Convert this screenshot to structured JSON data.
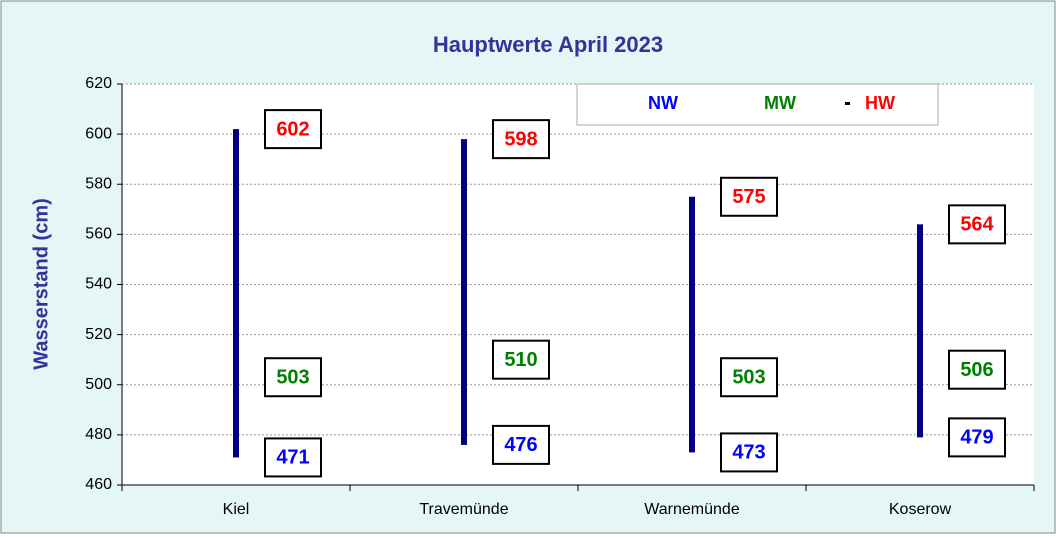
{
  "chart_data": {
    "type": "high-low",
    "title": "Hauptwerte April 2023",
    "y_label": "Wasserstand (cm)",
    "categories": [
      "Kiel",
      "Travemünde",
      "Warnemünde",
      "Koserow"
    ],
    "series": [
      {
        "name": "NW",
        "color": "#0000ff",
        "values": [
          471,
          476,
          473,
          479
        ]
      },
      {
        "name": "MW",
        "color": "#008000",
        "values": [
          503,
          510,
          503,
          506
        ]
      },
      {
        "name": "HW",
        "color": "#ff0000",
        "values": [
          602,
          598,
          575,
          564
        ]
      }
    ],
    "bar_color": "#000080",
    "ylim": [
      460,
      620
    ],
    "yticks": [
      460,
      480,
      500,
      520,
      540,
      560,
      580,
      600,
      620
    ],
    "grid": true
  }
}
